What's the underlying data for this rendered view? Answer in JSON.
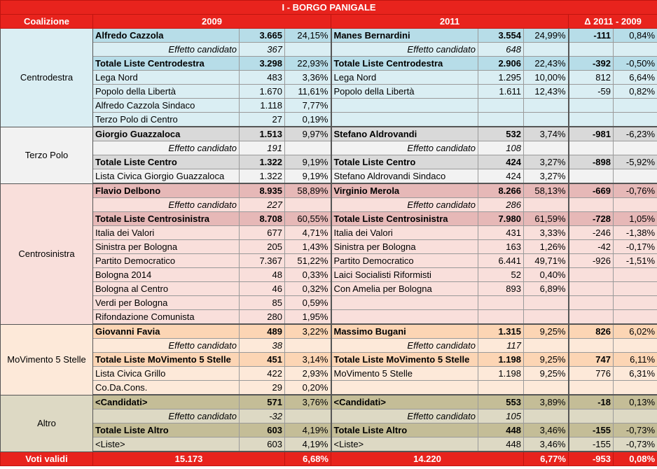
{
  "title": "I - BORGO PANIGALE",
  "headers": {
    "coalizione": "Coalizione",
    "y2009": "2009",
    "y2011": "2011",
    "delta": "Δ 2011 - 2009"
  },
  "groups": [
    {
      "name": "Centrodestra",
      "bg_light": "#daeef3",
      "bg_dark": "#b7dde8",
      "rows": [
        {
          "type": "cand",
          "n09": "Alfredo Cazzola",
          "v09": "3.665",
          "p09": "24,15%",
          "n11": "Manes Bernardini",
          "v11": "3.554",
          "p11": "24,99%",
          "dv": "-111",
          "dp": "0,84%"
        },
        {
          "type": "eff",
          "n09": "Effetto candidato",
          "v09": "367",
          "p09": "",
          "n11": "Effetto candidato",
          "v11": "648",
          "p11": "",
          "dv": "",
          "dp": ""
        },
        {
          "type": "tot",
          "n09": "Totale Liste Centrodestra",
          "v09": "3.298",
          "p09": "22,93%",
          "n11": "Totale Liste Centrodestra",
          "v11": "2.906",
          "p11": "22,43%",
          "dv": "-392",
          "dp": "-0,50%"
        },
        {
          "type": "list",
          "n09": "Lega Nord",
          "v09": "483",
          "p09": "3,36%",
          "n11": "Lega Nord",
          "v11": "1.295",
          "p11": "10,00%",
          "dv": "812",
          "dp": "6,64%"
        },
        {
          "type": "list",
          "n09": "Popolo della Libertà",
          "v09": "1.670",
          "p09": "11,61%",
          "n11": "Popolo della Libertà",
          "v11": "1.611",
          "p11": "12,43%",
          "dv": "-59",
          "dp": "0,82%"
        },
        {
          "type": "list",
          "n09": "Alfredo Cazzola Sindaco",
          "v09": "1.118",
          "p09": "7,77%",
          "n11": "",
          "v11": "",
          "p11": "",
          "dv": "",
          "dp": ""
        },
        {
          "type": "list",
          "n09": "Terzo Polo di Centro",
          "v09": "27",
          "p09": "0,19%",
          "n11": "",
          "v11": "",
          "p11": "",
          "dv": "",
          "dp": ""
        }
      ]
    },
    {
      "name": "Terzo Polo",
      "bg_light": "#f2f2f2",
      "bg_dark": "#d9d9d9",
      "rows": [
        {
          "type": "cand",
          "n09": "Giorgio Guazzaloca",
          "v09": "1.513",
          "p09": "9,97%",
          "n11": "Stefano Aldrovandi",
          "v11": "532",
          "p11": "3,74%",
          "dv": "-981",
          "dp": "-6,23%"
        },
        {
          "type": "eff",
          "n09": "Effetto candidato",
          "v09": "191",
          "p09": "",
          "n11": "Effetto candidato",
          "v11": "108",
          "p11": "",
          "dv": "",
          "dp": ""
        },
        {
          "type": "tot",
          "n09": "Totale Liste Centro",
          "v09": "1.322",
          "p09": "9,19%",
          "n11": "Totale Liste Centro",
          "v11": "424",
          "p11": "3,27%",
          "dv": "-898",
          "dp": "-5,92%"
        },
        {
          "type": "list",
          "n09": "Lista Civica Giorgio Guazzaloca",
          "v09": "1.322",
          "p09": "9,19%",
          "n11": "Stefano Aldrovandi Sindaco",
          "v11": "424",
          "p11": "3,27%",
          "dv": "",
          "dp": ""
        }
      ]
    },
    {
      "name": "Centrosinistra",
      "bg_light": "#f9dfdb",
      "bg_dark": "#e6b8b7",
      "rows": [
        {
          "type": "cand",
          "n09": "Flavio Delbono",
          "v09": "8.935",
          "p09": "58,89%",
          "n11": "Virginio Merola",
          "v11": "8.266",
          "p11": "58,13%",
          "dv": "-669",
          "dp": "-0,76%"
        },
        {
          "type": "eff",
          "n09": "Effetto candidato",
          "v09": "227",
          "p09": "",
          "n11": "Effetto candidato",
          "v11": "286",
          "p11": "",
          "dv": "",
          "dp": ""
        },
        {
          "type": "tot",
          "n09": "Totale Liste Centrosinistra",
          "v09": "8.708",
          "p09": "60,55%",
          "n11": "Totale Liste Centrosinistra",
          "v11": "7.980",
          "p11": "61,59%",
          "dv": "-728",
          "dp": "1,05%"
        },
        {
          "type": "list",
          "n09": "Italia dei Valori",
          "v09": "677",
          "p09": "4,71%",
          "n11": "Italia dei Valori",
          "v11": "431",
          "p11": "3,33%",
          "dv": "-246",
          "dp": "-1,38%"
        },
        {
          "type": "list",
          "n09": "Sinistra per Bologna",
          "v09": "205",
          "p09": "1,43%",
          "n11": "Sinistra per Bologna",
          "v11": "163",
          "p11": "1,26%",
          "dv": "-42",
          "dp": "-0,17%"
        },
        {
          "type": "list",
          "n09": "Partito Democratico",
          "v09": "7.367",
          "p09": "51,22%",
          "n11": "Partito Democratico",
          "v11": "6.441",
          "p11": "49,71%",
          "dv": "-926",
          "dp": "-1,51%"
        },
        {
          "type": "list",
          "n09": "Bologna 2014",
          "v09": "48",
          "p09": "0,33%",
          "n11": "Laici Socialisti Riformisti",
          "v11": "52",
          "p11": "0,40%",
          "dv": "",
          "dp": ""
        },
        {
          "type": "list",
          "n09": "Bologna al Centro",
          "v09": "46",
          "p09": "0,32%",
          "n11": "Con Amelia per Bologna",
          "v11": "893",
          "p11": "6,89%",
          "dv": "",
          "dp": ""
        },
        {
          "type": "list",
          "n09": "Verdi per Bologna",
          "v09": "85",
          "p09": "0,59%",
          "n11": "",
          "v11": "",
          "p11": "",
          "dv": "",
          "dp": ""
        },
        {
          "type": "list",
          "n09": "Rifondazione Comunista",
          "v09": "280",
          "p09": "1,95%",
          "n11": "",
          "v11": "",
          "p11": "",
          "dv": "",
          "dp": ""
        }
      ]
    },
    {
      "name": "MoVimento 5 Stelle",
      "bg_light": "#fde9d9",
      "bg_dark": "#fcd5b4",
      "rows": [
        {
          "type": "cand",
          "n09": "Giovanni Favia",
          "v09": "489",
          "p09": "3,22%",
          "n11": "Massimo Bugani",
          "v11": "1.315",
          "p11": "9,25%",
          "dv": "826",
          "dp": "6,02%"
        },
        {
          "type": "eff",
          "n09": "Effetto candidato",
          "v09": "38",
          "p09": "",
          "n11": "Effetto candidato",
          "v11": "117",
          "p11": "",
          "dv": "",
          "dp": ""
        },
        {
          "type": "tot",
          "n09": "Totale Liste MoVimento 5 Stelle",
          "v09": "451",
          "p09": "3,14%",
          "n11": "Totale Liste MoVimento 5 Stelle",
          "v11": "1.198",
          "p11": "9,25%",
          "dv": "747",
          "dp": "6,11%"
        },
        {
          "type": "list",
          "n09": "Lista Civica Grillo",
          "v09": "422",
          "p09": "2,93%",
          "n11": "MoVimento 5 Stelle",
          "v11": "1.198",
          "p11": "9,25%",
          "dv": "776",
          "dp": "6,31%"
        },
        {
          "type": "list",
          "n09": "Co.Da.Cons.",
          "v09": "29",
          "p09": "0,20%",
          "n11": "",
          "v11": "",
          "p11": "",
          "dv": "",
          "dp": ""
        }
      ]
    },
    {
      "name": "Altro",
      "bg_light": "#ddd9c4",
      "bg_dark": "#c4bd97",
      "rows": [
        {
          "type": "cand",
          "n09": "<Candidati>",
          "v09": "571",
          "p09": "3,76%",
          "n11": "<Candidati>",
          "v11": "553",
          "p11": "3,89%",
          "dv": "-18",
          "dp": "0,13%"
        },
        {
          "type": "eff",
          "n09": "Effetto candidato",
          "v09": "-32",
          "p09": "",
          "n11": "Effetto candidato",
          "v11": "105",
          "p11": "",
          "dv": "",
          "dp": ""
        },
        {
          "type": "tot",
          "n09": "Totale Liste Altro",
          "v09": "603",
          "p09": "4,19%",
          "n11": "Totale Liste Altro",
          "v11": "448",
          "p11": "3,46%",
          "dv": "-155",
          "dp": "-0,73%"
        },
        {
          "type": "list",
          "n09": "<Liste>",
          "v09": "603",
          "p09": "4,19%",
          "n11": "<Liste>",
          "v11": "448",
          "p11": "3,46%",
          "dv": "-155",
          "dp": "-0,73%"
        }
      ]
    }
  ],
  "footer": {
    "label": "Voti validi",
    "v09": "15.173",
    "p09": "6,68%",
    "v11": "14.220",
    "p11": "6,77%",
    "dv": "-953",
    "dp": "0,08%"
  }
}
